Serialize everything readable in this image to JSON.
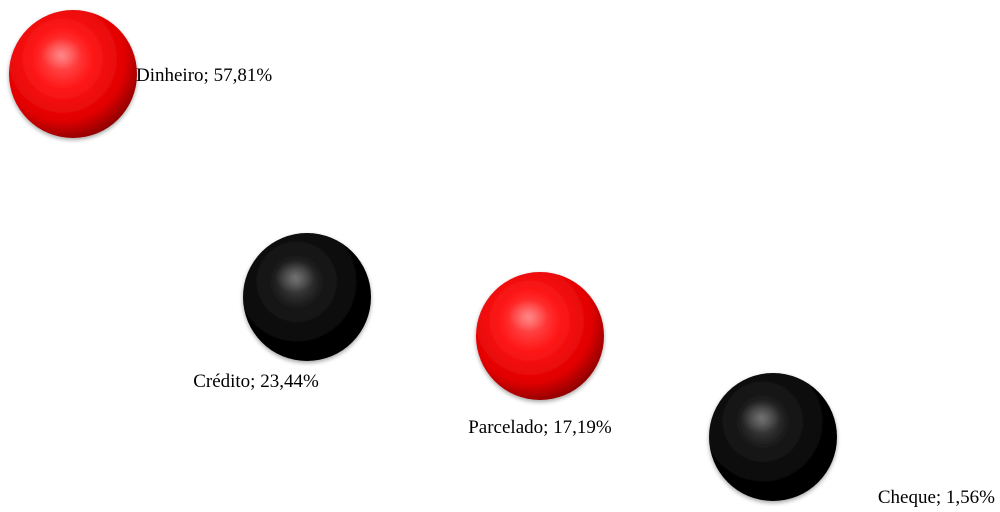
{
  "chart_data": {
    "type": "scatter",
    "title": "",
    "xlabel": "",
    "ylabel": "",
    "grid": false,
    "legend": false,
    "points": [
      {
        "category": "Dinheiro",
        "value": 57.81,
        "label": "Dinheiro; 57,81%",
        "color": "#ff0000"
      },
      {
        "category": "Crédito",
        "value": 23.44,
        "label": "Crédito; 23,44%",
        "color": "#000000"
      },
      {
        "category": "Parcelado",
        "value": 17.19,
        "label": "Parcelado; 17,19%",
        "color": "#ff0000"
      },
      {
        "category": "Cheque",
        "value": 1.56,
        "label": "Cheque; 1,56%",
        "color": "#000000"
      }
    ]
  }
}
